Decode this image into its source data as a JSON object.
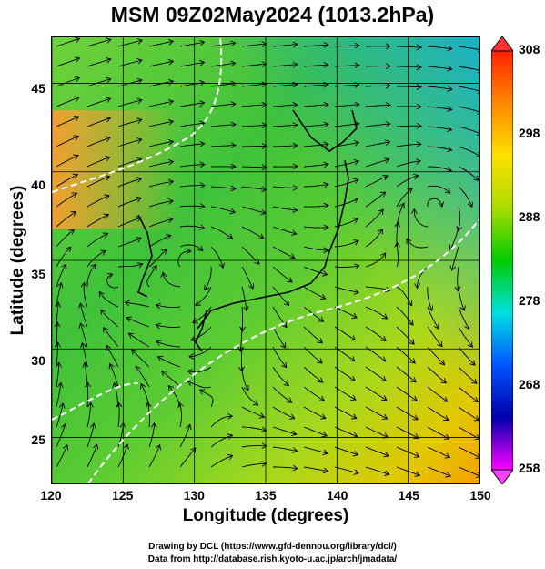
{
  "title": "MSM 09Z02May2024 (1013.2hPa)",
  "map": {
    "xlabel": "Longitude (degrees)",
    "ylabel": "Latitude  (degrees)",
    "x_ticks": [
      "120",
      "125",
      "130",
      "135",
      "140",
      "145",
      "150"
    ],
    "y_ticks": [
      "25",
      "30",
      "35",
      "40",
      "45"
    ],
    "lon_range": [
      120,
      150
    ],
    "lat_range": [
      22.4,
      47.6
    ]
  },
  "colorbar": {
    "ticks": [
      "308",
      "298",
      "288",
      "278",
      "268",
      "258"
    ],
    "min": 258,
    "max": 308,
    "colors": [
      "#ff00ff",
      "#0000aa",
      "#0055ff",
      "#00e0e0",
      "#00cc00",
      "#aadd00",
      "#ffe000",
      "#ff8800",
      "#ff2200"
    ]
  },
  "credits": {
    "line1": "Drawing by DCL (https://www.gfd-dennou.org/library/dcl/)",
    "line2": "Data from http://database.rish.kyoto-u.ac.jp/arch/jmadata/"
  }
}
